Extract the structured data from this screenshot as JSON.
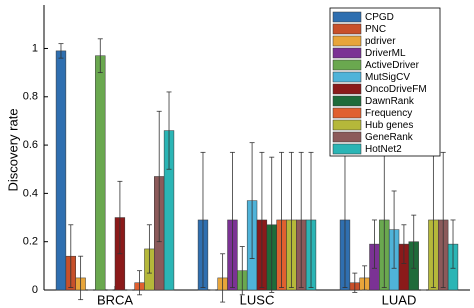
{
  "chart_data": {
    "type": "bar",
    "ylabel": "Discovery rate",
    "categories": [
      "BRCA",
      "LUSC",
      "LUAD"
    ],
    "ylim": [
      0,
      1.18
    ],
    "yticks": [
      0,
      0.2,
      0.4,
      0.6,
      0.8,
      1
    ],
    "series": [
      {
        "name": "CPGD",
        "color": "#2f6fb0",
        "values": [
          0.99,
          0.29,
          0.29
        ],
        "errors": [
          0.03,
          0.28,
          0.28
        ]
      },
      {
        "name": "PNC",
        "color": "#c8502a",
        "values": [
          0.14,
          0,
          0.03
        ],
        "errors": [
          0.13,
          0,
          0.04
        ]
      },
      {
        "name": "pdriver",
        "color": "#e8a53a",
        "values": [
          0.05,
          0.05,
          0.05
        ],
        "errors": [
          0.09,
          0.1,
          0.05
        ]
      },
      {
        "name": "DriverML",
        "color": "#7b3294",
        "values": [
          0,
          0.29,
          0.19
        ],
        "errors": [
          0,
          0.28,
          0.1
        ]
      },
      {
        "name": "ActiveDriver",
        "color": "#6aa84f",
        "values": [
          0.97,
          0.08,
          0.29
        ],
        "errors": [
          0.07,
          0.1,
          0.28
        ]
      },
      {
        "name": "MutSigCV",
        "color": "#4fb3d9",
        "values": [
          0,
          0.37,
          0.25
        ],
        "errors": [
          0,
          0.24,
          0.16
        ]
      },
      {
        "name": "OncoDriveFM",
        "color": "#8b1a1a",
        "values": [
          0.3,
          0.29,
          0.19
        ],
        "errors": [
          0.15,
          0.28,
          0.08
        ]
      },
      {
        "name": "DawnRank",
        "color": "#1f6b3a",
        "values": [
          0,
          0.27,
          0.2
        ],
        "errors": [
          0,
          0.28,
          0.11
        ]
      },
      {
        "name": "Frequency",
        "color": "#e06030",
        "values": [
          0.03,
          0.29,
          0
        ],
        "errors": [
          0.05,
          0.28,
          0
        ]
      },
      {
        "name": "Hub genes",
        "color": "#b5b83a",
        "values": [
          0.17,
          0.29,
          0.29
        ],
        "errors": [
          0.1,
          0.28,
          0.28
        ]
      },
      {
        "name": "GeneRank",
        "color": "#8c5a5a",
        "values": [
          0.47,
          0.29,
          0.29
        ],
        "errors": [
          0.27,
          0.28,
          0.28
        ]
      },
      {
        "name": "HotNet2",
        "color": "#2bb5b5",
        "values": [
          0.66,
          0.29,
          0.19
        ],
        "errors": [
          0.16,
          0.28,
          0.1
        ]
      }
    ]
  }
}
